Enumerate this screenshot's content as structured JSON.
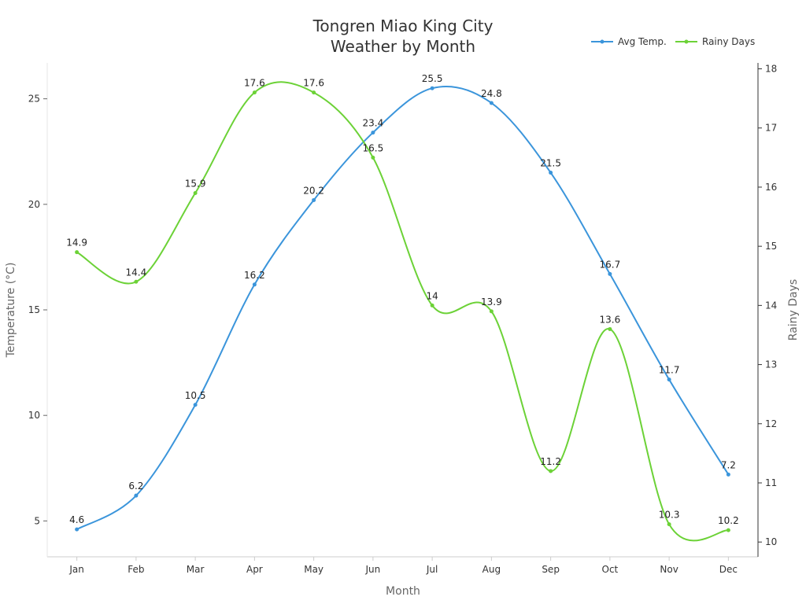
{
  "chart_data": {
    "type": "line",
    "title_lines": [
      "Tongren Miao King City",
      "Weather by Month"
    ],
    "xlabel": "Month",
    "ylabel_left": "Temperature (°C)",
    "ylabel_right": "Rainy Days",
    "categories": [
      "Jan",
      "Feb",
      "Mar",
      "Apr",
      "May",
      "Jun",
      "Jul",
      "Aug",
      "Sep",
      "Oct",
      "Nov",
      "Dec"
    ],
    "ylim_left": [
      3.3,
      26.7
    ],
    "yticks_left": [
      5,
      10,
      15,
      20,
      25
    ],
    "ylim_right": [
      9.75,
      18.1
    ],
    "yticks_right": [
      10,
      11,
      12,
      13,
      14,
      15,
      16,
      17,
      18
    ],
    "grid": false,
    "legend_position": "top-right",
    "series": [
      {
        "name": "Avg Temp.",
        "axis": "left",
        "color": "#3b95db",
        "values": [
          4.6,
          6.2,
          10.5,
          16.2,
          20.2,
          23.4,
          25.5,
          24.8,
          21.5,
          16.7,
          11.7,
          7.2
        ]
      },
      {
        "name": "Rainy Days",
        "axis": "right",
        "color": "#6cd237",
        "values": [
          14.9,
          14.4,
          15.9,
          17.6,
          17.6,
          16.5,
          14,
          13.9,
          11.2,
          13.6,
          10.3,
          10.2
        ]
      }
    ]
  }
}
